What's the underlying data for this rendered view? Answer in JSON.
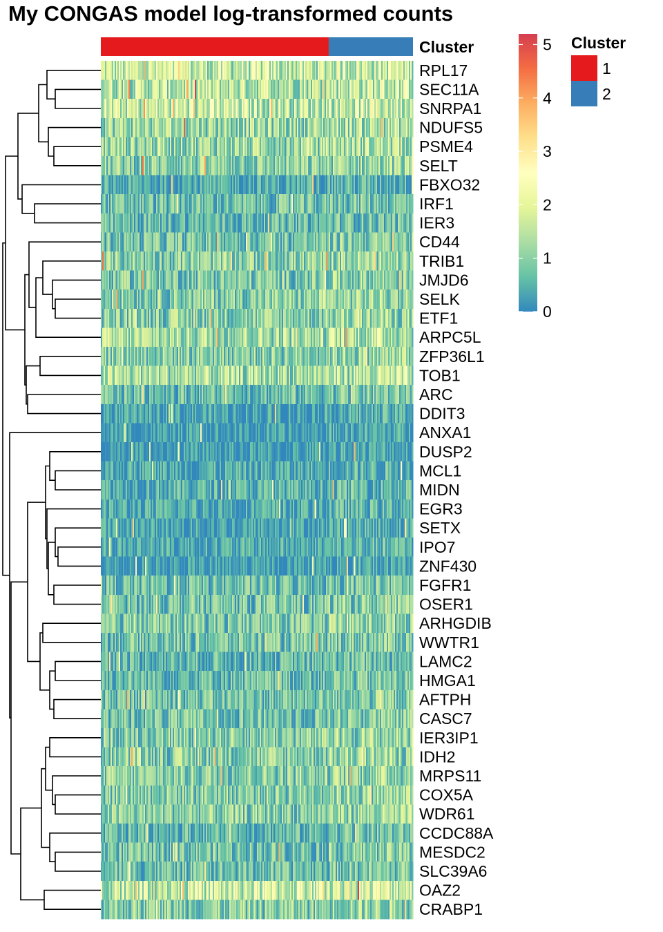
{
  "chart_data": {
    "type": "heatmap",
    "title": "My CONGAS model log-transformed counts",
    "column_annotation": {
      "name": "Cluster",
      "cluster_fractions": [
        0.73,
        0.27
      ],
      "levels": [
        {
          "label": "1",
          "color": "#e41a1c"
        },
        {
          "label": "2",
          "color": "#377eb8"
        }
      ]
    },
    "rows": [
      "RPL17",
      "SEC11A",
      "SNRPA1",
      "NDUFS5",
      "PSME4",
      "SELT",
      "FBXO32",
      "IRF1",
      "IER3",
      "CD44",
      "TRIB1",
      "JMJD6",
      "SELK",
      "ETF1",
      "ARPC5L",
      "ZFP36L1",
      "TOB1",
      "ARC",
      "DDIT3",
      "ANXA1",
      "DUSP2",
      "MCL1",
      "MIDN",
      "EGR3",
      "SETX",
      "IPO7",
      "ZNF430",
      "FGFR1",
      "OSER1",
      "ARHGDIB",
      "WWTR1",
      "LAMC2",
      "HMGA1",
      "AFTPH",
      "CASC7",
      "IER3IP1",
      "IDH2",
      "MRPS11",
      "COX5A",
      "WDR61",
      "CCDC88A",
      "MESDC2",
      "SLC39A6",
      "OAZ2",
      "CRABP1"
    ],
    "approx_row_means": [
      1.6,
      1.5,
      1.6,
      1.2,
      1.2,
      1.0,
      0.4,
      0.7,
      0.6,
      0.8,
      1.0,
      0.9,
      1.0,
      1.0,
      1.3,
      1.0,
      1.3,
      0.7,
      0.3,
      0.2,
      0.2,
      0.4,
      0.5,
      0.4,
      0.3,
      0.4,
      0.2,
      0.7,
      0.8,
      0.9,
      0.8,
      0.6,
      0.7,
      0.8,
      0.8,
      1.0,
      1.0,
      1.0,
      1.0,
      1.0,
      0.6,
      0.8,
      0.7,
      1.7,
      1.0
    ],
    "colorbar": {
      "min": 0,
      "max": 5.2,
      "ticks": [
        0,
        1,
        2,
        3,
        4,
        5
      ],
      "colors": [
        "#3288bd",
        "#66c2a5",
        "#abdda4",
        "#e6f598",
        "#ffffbf",
        "#fee08b",
        "#fdae61",
        "#f46d43",
        "#d53e4f"
      ]
    },
    "row_dendrogram": true
  }
}
